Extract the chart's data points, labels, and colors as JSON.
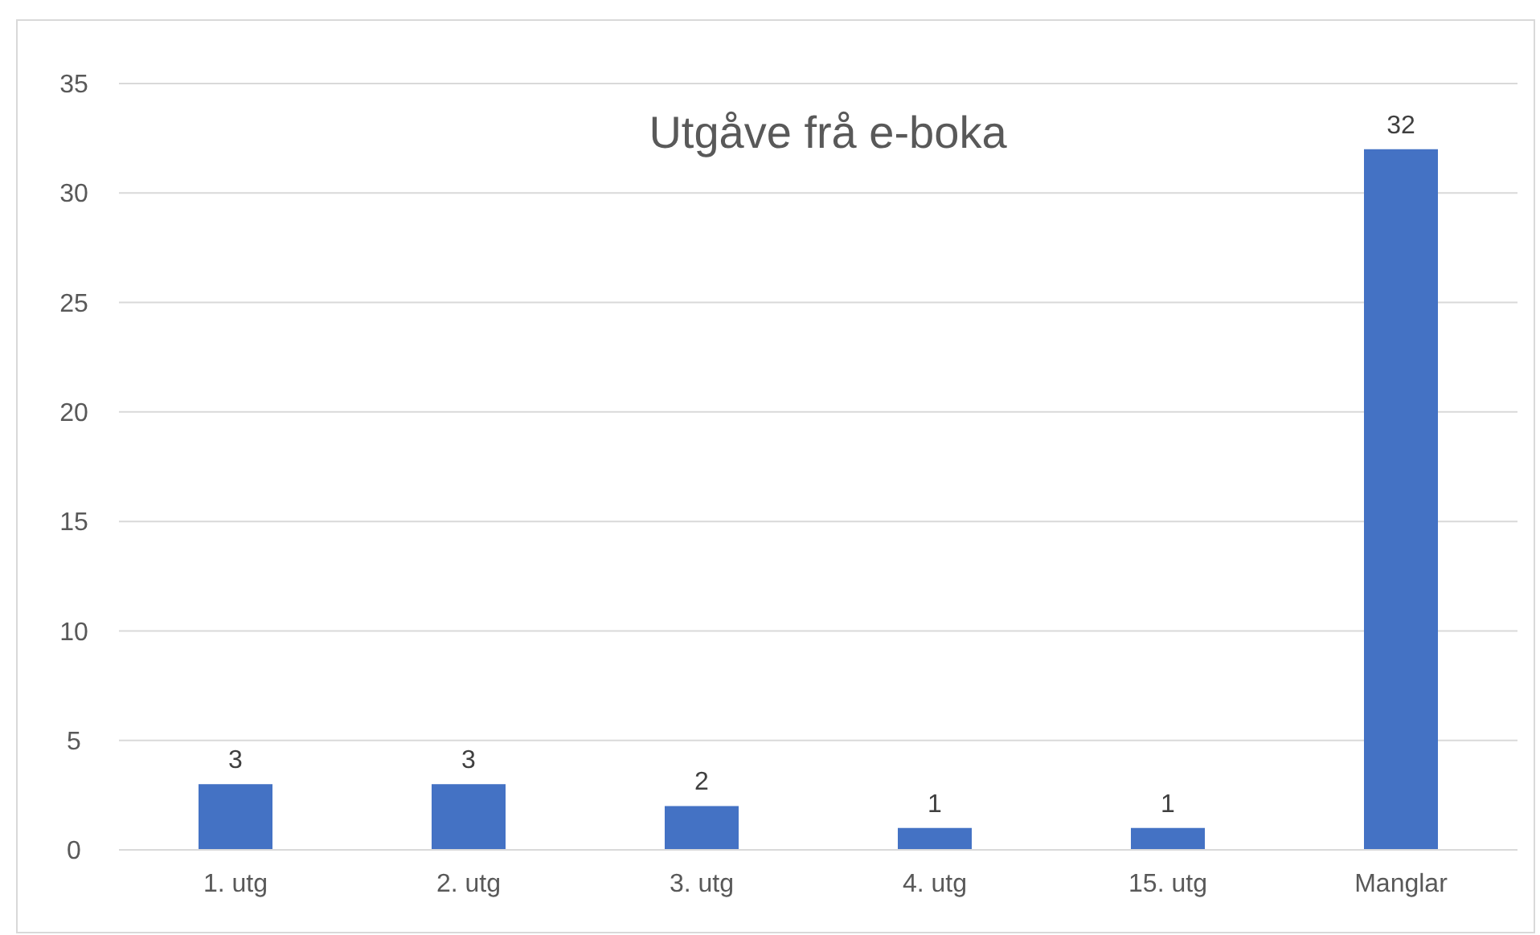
{
  "chart_data": {
    "type": "bar",
    "title": "Utgåve frå e-boka",
    "categories": [
      "1. utg",
      "2. utg",
      "3. utg",
      "4. utg",
      "15. utg",
      "Manglar"
    ],
    "values": [
      3,
      3,
      2,
      1,
      1,
      32
    ],
    "color": "#4472c4",
    "ylim": [
      0,
      35
    ],
    "yticks": [
      0,
      5,
      10,
      15,
      20,
      25,
      30,
      35
    ],
    "grid": "y",
    "data_labels": true
  }
}
